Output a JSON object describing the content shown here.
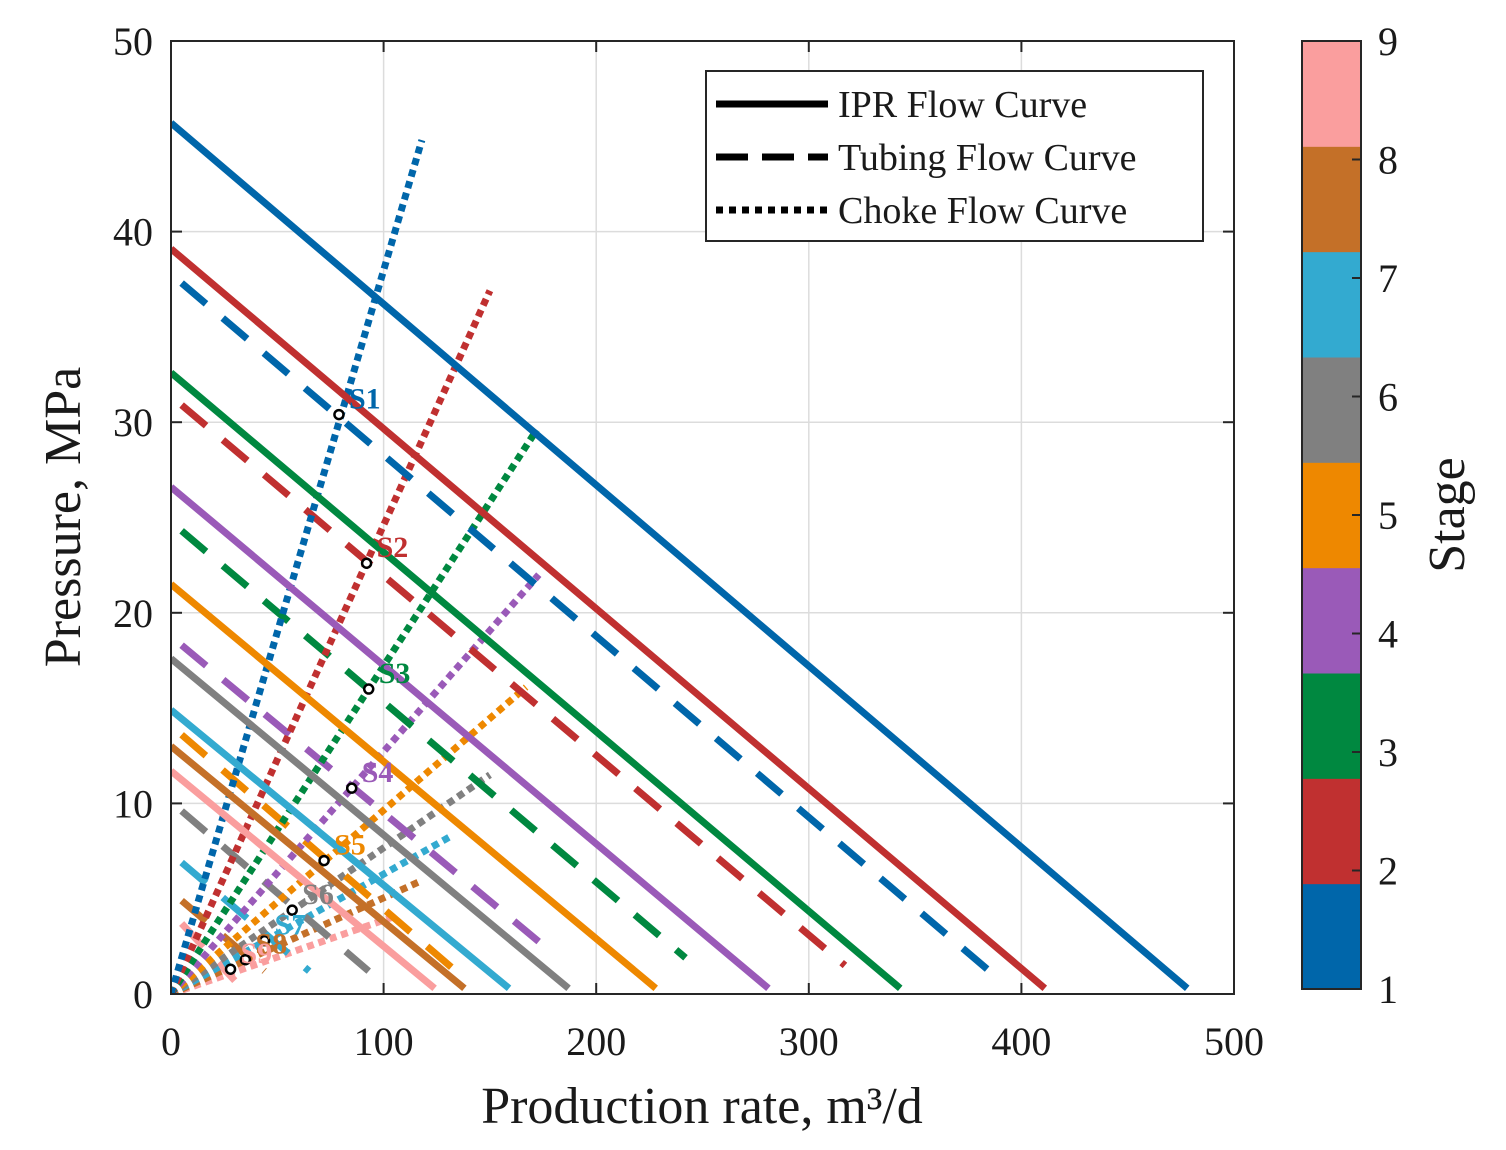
{
  "chart_data": {
    "type": "line",
    "xlabel": "Production rate, m³/d",
    "ylabel": "Pressure, MPa",
    "xlim": [
      0,
      500
    ],
    "ylim": [
      0,
      50
    ],
    "xticks": [
      0,
      100,
      200,
      300,
      400,
      500
    ],
    "yticks": [
      0,
      10,
      20,
      30,
      40,
      50
    ],
    "grid": true,
    "legend": {
      "position": "top-right",
      "entries": [
        {
          "label": "IPR Flow Curve",
          "style": "solid"
        },
        {
          "label": "Tubing Flow Curve",
          "style": "dashed"
        },
        {
          "label": "Choke Flow Curve",
          "style": "dotted"
        }
      ]
    },
    "colorbar": {
      "label": "Stage",
      "ticks": [
        "1",
        "2",
        "3",
        "4",
        "5",
        "6",
        "7",
        "8",
        "9"
      ]
    },
    "stages": [
      {
        "stage": 1,
        "color": "#0066aa",
        "ipr": [
          [
            0,
            45.7
          ],
          [
            478,
            0.3
          ]
        ],
        "tubing": [
          [
            5,
            37.3
          ],
          [
            385,
            1.2
          ]
        ],
        "choke": [
          [
            0,
            0
          ],
          [
            118,
            44.8
          ]
        ],
        "point": [
          79,
          30.4
        ],
        "label": "S1"
      },
      {
        "stage": 2,
        "color": "#c03030",
        "ipr": [
          [
            0,
            39.1
          ],
          [
            411,
            0.3
          ]
        ],
        "tubing": [
          [
            5,
            30.9
          ],
          [
            317,
            1.5
          ]
        ],
        "choke": [
          [
            0,
            0
          ],
          [
            150,
            36.9
          ]
        ],
        "point": [
          92,
          22.6
        ],
        "label": "S2"
      },
      {
        "stage": 3,
        "color": "#008840",
        "ipr": [
          [
            0,
            32.6
          ],
          [
            343,
            0.3
          ]
        ],
        "tubing": [
          [
            5,
            24.3
          ],
          [
            242,
            1.9
          ]
        ],
        "choke": [
          [
            0,
            0
          ],
          [
            172,
            29.6
          ]
        ],
        "point": [
          93,
          16.0
        ],
        "label": "S3"
      },
      {
        "stage": 4,
        "color": "#9a5ab8",
        "ipr": [
          [
            0,
            26.6
          ],
          [
            281,
            0.3
          ]
        ],
        "tubing": [
          [
            5,
            18.3
          ],
          [
            180,
            2.1
          ]
        ],
        "choke": [
          [
            0,
            0
          ],
          [
            173,
            22.0
          ]
        ],
        "point": [
          85,
          10.8
        ],
        "label": "S4"
      },
      {
        "stage": 5,
        "color": "#ee8800",
        "ipr": [
          [
            0,
            21.5
          ],
          [
            228,
            0.3
          ]
        ],
        "tubing": [
          [
            5,
            13.6
          ],
          [
            134,
            1.2
          ]
        ],
        "choke": [
          [
            0,
            0
          ],
          [
            167,
            16.1
          ]
        ],
        "point": [
          72,
          7.0
        ],
        "label": "S5"
      },
      {
        "stage": 6,
        "color": "#808080",
        "ipr": [
          [
            0,
            17.6
          ],
          [
            187,
            0.3
          ]
        ],
        "tubing": [
          [
            5,
            9.6
          ],
          [
            93,
            1.2
          ]
        ],
        "choke": [
          [
            0,
            0
          ],
          [
            150,
            11.5
          ]
        ],
        "point": [
          57,
          4.4
        ],
        "label": "S6"
      },
      {
        "stage": 7,
        "color": "#33aad0",
        "ipr": [
          [
            0,
            14.9
          ],
          [
            159,
            0.3
          ]
        ],
        "tubing": [
          [
            5,
            6.9
          ],
          [
            65,
            1.2
          ]
        ],
        "choke": [
          [
            0,
            0
          ],
          [
            132,
            8.3
          ]
        ],
        "point": [
          44,
          2.8
        ],
        "label": "S7"
      },
      {
        "stage": 8,
        "color": "#c47028",
        "ipr": [
          [
            0,
            13.0
          ],
          [
            138,
            0.3
          ]
        ],
        "tubing": [
          [
            5,
            4.9
          ],
          [
            44,
            1.2
          ]
        ],
        "choke": [
          [
            0,
            0
          ],
          [
            117,
            5.9
          ]
        ],
        "point": [
          35,
          1.8
        ],
        "label": "S8"
      },
      {
        "stage": 9,
        "color": "#fa9e9e",
        "ipr": [
          [
            0,
            11.7
          ],
          [
            124,
            0.3
          ]
        ],
        "tubing": [
          [
            5,
            3.7
          ],
          [
            30,
            0.7
          ]
        ],
        "choke": [
          [
            0,
            0
          ],
          [
            106,
            4.1
          ]
        ],
        "point": [
          28,
          1.3
        ],
        "label": "S9"
      }
    ]
  }
}
